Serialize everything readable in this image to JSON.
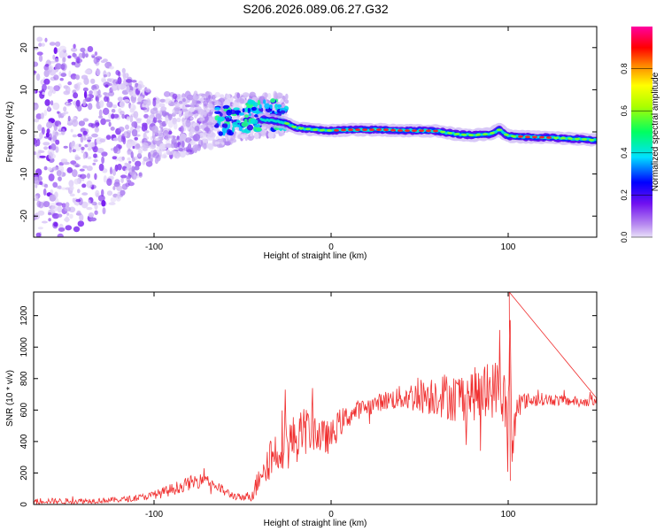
{
  "title": "S206.2026.089.06.27.G32",
  "chart_data": [
    {
      "type": "heatmap",
      "title": "S206.2026.089.06.27.G32",
      "xlabel": "Height of straight line (km)",
      "ylabel": "Frequency (Hz)",
      "xlim": [
        -168,
        150
      ],
      "ylim": [
        -25,
        25
      ],
      "x_ticks": [
        -100,
        0,
        100
      ],
      "x_tick_labels": [
        "-100",
        "0",
        "100"
      ],
      "y_ticks": [
        -20,
        -10,
        0,
        10,
        20
      ],
      "y_tick_labels": [
        "-20",
        "-10",
        "0",
        "10",
        "20"
      ],
      "colorbar": {
        "label": "Normalized spectral amplitude",
        "range": [
          0,
          1
        ],
        "ticks": [
          0.0,
          0.2,
          0.4,
          0.6,
          0.8
        ],
        "tick_labels": [
          "0.0",
          "0.2",
          "0.4",
          "0.6",
          "0.8"
        ]
      },
      "ridge": {
        "x": [
          -40,
          -30,
          -25,
          -20,
          -10,
          0,
          10,
          20,
          30,
          40,
          50,
          60,
          70,
          80,
          90,
          95,
          100,
          110,
          120,
          130,
          140,
          150
        ],
        "freq": [
          3,
          2.5,
          2,
          1,
          0.5,
          0.3,
          0.5,
          0.5,
          0.5,
          0.3,
          0.3,
          0.2,
          -0.5,
          -0.8,
          -0.5,
          0.5,
          -1,
          -1.2,
          -1.3,
          -1.5,
          -1.7,
          -2
        ]
      },
      "scatter_trend": {
        "x": [
          -168,
          -140,
          -120,
          -100,
          -80,
          -60,
          -40
        ],
        "freq_center": [
          -2,
          -1,
          0,
          1,
          2,
          3,
          4
        ],
        "spread": [
          25,
          22,
          16,
          8,
          7,
          6,
          5
        ]
      }
    },
    {
      "type": "line",
      "xlabel": "Height of straight line (km)",
      "ylabel": "SNR (10 * v/v)",
      "xlim": [
        -168,
        150
      ],
      "ylim": [
        0,
        1350
      ],
      "x_ticks": [
        -100,
        0,
        100
      ],
      "x_tick_labels": [
        "-100",
        "0",
        "100"
      ],
      "y_ticks": [
        0,
        200,
        400,
        600,
        800,
        1000,
        1200
      ],
      "y_tick_labels": [
        "0",
        "200",
        "400",
        "600",
        "800",
        "1000",
        "1200"
      ],
      "color": "#f03030",
      "series": [
        {
          "name": "SNR",
          "x": [
            -168,
            -150,
            -130,
            -120,
            -110,
            -100,
            -95,
            -90,
            -85,
            -80,
            -75,
            -72,
            -70,
            -65,
            -60,
            -55,
            -50,
            -45,
            -42,
            -40,
            -35,
            -30,
            -28,
            -25,
            -20,
            -15,
            -10,
            -5,
            0,
            5,
            10,
            15,
            20,
            25,
            30,
            40,
            50,
            60,
            70,
            80,
            90,
            95,
            98,
            100,
            101,
            102,
            105,
            110,
            120,
            130,
            140,
            150
          ],
          "values": [
            25,
            20,
            25,
            30,
            40,
            60,
            75,
            95,
            115,
            135,
            150,
            190,
            160,
            120,
            80,
            55,
            40,
            60,
            120,
            220,
            300,
            340,
            430,
            380,
            420,
            460,
            480,
            420,
            430,
            520,
            560,
            600,
            620,
            640,
            660,
            680,
            690,
            700,
            680,
            700,
            720,
            760,
            650,
            500,
            1200,
            300,
            640,
            660,
            670,
            660,
            655,
            650
          ],
          "noise_amp": [
            18,
            18,
            18,
            18,
            20,
            25,
            35,
            40,
            40,
            45,
            50,
            50,
            45,
            40,
            30,
            25,
            20,
            40,
            80,
            110,
            150,
            160,
            200,
            170,
            160,
            150,
            140,
            120,
            100,
            90,
            70,
            60,
            55,
            55,
            60,
            80,
            110,
            140,
            160,
            170,
            180,
            180,
            200,
            200,
            150,
            200,
            70,
            50,
            40,
            35,
            30,
            30
          ]
        }
      ]
    }
  ]
}
